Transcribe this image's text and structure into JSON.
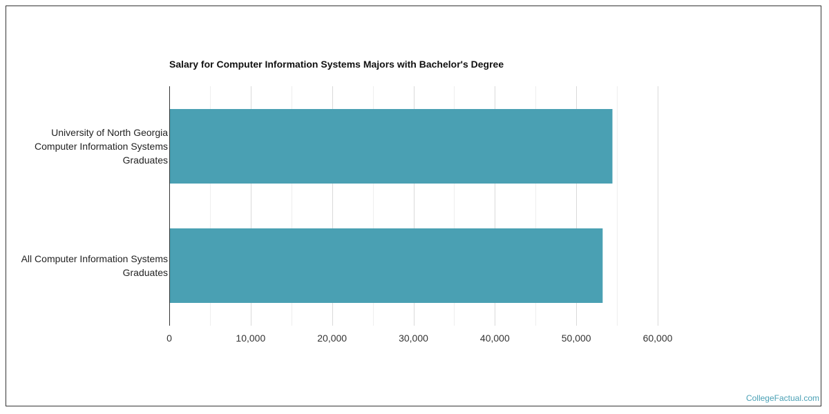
{
  "chart_data": {
    "type": "bar",
    "orientation": "horizontal",
    "title": "Salary for Computer Information Systems Majors with Bachelor's Degree",
    "categories": [
      "University of North Georgia\nComputer Information Systems\nGraduates",
      "All Computer Information Systems\nGraduates"
    ],
    "values": [
      54400,
      53200
    ],
    "xlim": [
      0,
      60000
    ],
    "xticks": [
      "0",
      "10,000",
      "20,000",
      "30,000",
      "40,000",
      "50,000",
      "60,000"
    ],
    "xlabel": "",
    "ylabel": "",
    "grid": true,
    "bar_color": "#4aa0b3"
  },
  "watermark": "CollegeFactual.com"
}
